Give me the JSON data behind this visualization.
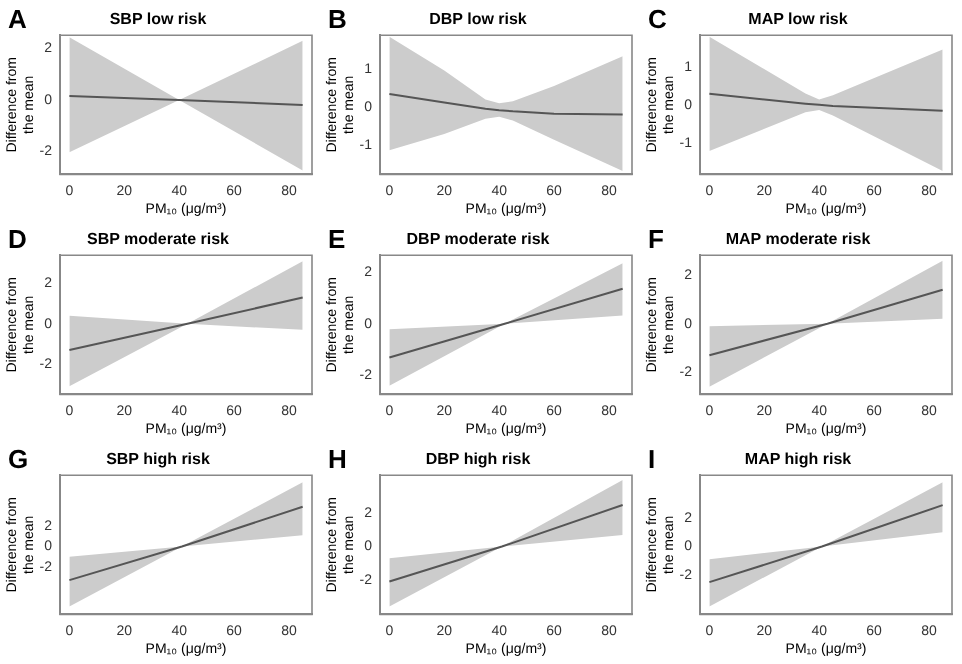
{
  "chart_data": [
    {
      "type": "line",
      "title": "SBP low risk",
      "xlabel": "PM₁₀ (μg/m³)",
      "ylabel": "Difference from the mean",
      "annotations": [
        "A"
      ],
      "marker": "none",
      "xlim": [
        -3.4,
        88.4
      ],
      "xticks": [
        0,
        20,
        40,
        60,
        80
      ],
      "ylim": [
        -2.9,
        2.52
      ],
      "yticks": [
        -2,
        0,
        2
      ],
      "series": [
        {
          "color": "#555555",
          "x": [
            0,
            40,
            85
          ],
          "values": [
            0.15,
            0,
            -0.2
          ],
          "lower": [
            -2.04,
            0,
            -2.75
          ],
          "upper": [
            2.44,
            0,
            2.3
          ]
        }
      ]
    },
    {
      "type": "line",
      "title": "DBP low risk",
      "xlabel": "PM₁₀ (μg/m³)",
      "ylabel": "Difference from the mean",
      "annotations": [
        "B"
      ],
      "marker": "none",
      "xlim": [
        -3.4,
        88.4
      ],
      "xticks": [
        0,
        20,
        40,
        60,
        80
      ],
      "ylim": [
        -1.75,
        1.87
      ],
      "yticks": [
        -1,
        0,
        1
      ],
      "series": [
        {
          "color": "#555555",
          "x": [
            0,
            20,
            35,
            40,
            45,
            60,
            85
          ],
          "values": [
            0.34,
            0.12,
            -0.04,
            -0.08,
            -0.11,
            -0.17,
            -0.19
          ],
          "lower": [
            -1.12,
            -0.7,
            -0.3,
            -0.25,
            -0.35,
            -0.85,
            -1.66
          ],
          "upper": [
            1.83,
            0.95,
            0.2,
            0.1,
            0.15,
            0.55,
            1.32
          ]
        }
      ]
    },
    {
      "type": "line",
      "title": "MAP low risk",
      "xlabel": "PM₁₀ (μg/m³)",
      "ylabel": "Difference from the mean",
      "annotations": [
        "C"
      ],
      "marker": "none",
      "xlim": [
        -3.4,
        88.4
      ],
      "xticks": [
        0,
        20,
        40,
        60,
        80
      ],
      "ylim": [
        -1.84,
        1.84
      ],
      "yticks": [
        -1,
        0,
        1
      ],
      "series": [
        {
          "color": "#555555",
          "x": [
            0,
            35,
            40,
            45,
            85
          ],
          "values": [
            0.29,
            0.03,
            0,
            -0.03,
            -0.16
          ],
          "lower": [
            -1.22,
            -0.2,
            -0.14,
            -0.28,
            -1.75
          ],
          "upper": [
            1.8,
            0.3,
            0.14,
            0.25,
            1.46
          ]
        }
      ]
    },
    {
      "type": "line",
      "title": "SBP moderate risk",
      "xlabel": "PM₁₀ (μg/m³)",
      "ylabel": "Difference from the mean",
      "annotations": [
        "D"
      ],
      "marker": "none",
      "xlim": [
        -3.4,
        88.4
      ],
      "xticks": [
        0,
        20,
        40,
        60,
        80
      ],
      "ylim": [
        -3.5,
        3.4
      ],
      "yticks": [
        -2,
        0,
        2
      ],
      "series": [
        {
          "color": "#555555",
          "x": [
            0,
            43,
            85
          ],
          "values": [
            -1.3,
            0,
            1.3
          ],
          "lower": [
            -3.1,
            0,
            -0.3
          ],
          "upper": [
            0.4,
            0,
            3.1
          ]
        }
      ]
    },
    {
      "type": "line",
      "title": "DBP moderate risk",
      "xlabel": "PM₁₀ (μg/m³)",
      "ylabel": "Difference from the mean",
      "annotations": [
        "E"
      ],
      "marker": "none",
      "xlim": [
        -3.4,
        88.4
      ],
      "xticks": [
        0,
        20,
        40,
        60,
        80
      ],
      "ylim": [
        -2.76,
        2.68
      ],
      "yticks": [
        -2,
        0,
        2
      ],
      "series": [
        {
          "color": "#555555",
          "x": [
            0,
            42,
            85
          ],
          "values": [
            -1.32,
            0,
            1.37
          ],
          "lower": [
            -2.42,
            0,
            0.32
          ],
          "upper": [
            -0.21,
            0,
            2.37
          ]
        }
      ]
    },
    {
      "type": "line",
      "title": "MAP moderate risk",
      "xlabel": "PM₁₀ (μg/m³)",
      "ylabel": "Difference from the mean",
      "annotations": [
        "F"
      ],
      "marker": "none",
      "xlim": [
        -3.4,
        88.4
      ],
      "xticks": [
        0,
        20,
        40,
        60,
        80
      ],
      "ylim": [
        -2.92,
        2.83
      ],
      "yticks": [
        -2,
        0,
        2
      ],
      "series": [
        {
          "color": "#555555",
          "x": [
            0,
            43,
            85
          ],
          "values": [
            -1.3,
            0,
            1.4
          ],
          "lower": [
            -2.6,
            0,
            0.2
          ],
          "upper": [
            -0.1,
            0,
            2.6
          ]
        }
      ]
    },
    {
      "type": "line",
      "title": "SBP high risk",
      "xlabel": "PM₁₀ (μg/m³)",
      "ylabel": "Difference from the mean",
      "annotations": [
        "G"
      ],
      "marker": "none",
      "xlim": [
        -3.4,
        88.4
      ],
      "xticks": [
        0,
        20,
        40,
        60,
        80
      ],
      "ylim": [
        -6.67,
        7
      ],
      "yticks": [
        -2,
        0,
        2
      ],
      "series": [
        {
          "color": "#555555",
          "x": [
            0,
            41,
            85
          ],
          "values": [
            -3.3,
            0,
            3.9
          ],
          "lower": [
            -5.9,
            0,
            1.1
          ],
          "upper": [
            -1,
            0,
            6.3
          ]
        }
      ]
    },
    {
      "type": "line",
      "title": "DBP high risk",
      "xlabel": "PM₁₀ (μg/m³)",
      "ylabel": "Difference from the mean",
      "annotations": [
        "H"
      ],
      "marker": "none",
      "xlim": [
        -3.4,
        88.4
      ],
      "xticks": [
        0,
        20,
        40,
        60,
        80
      ],
      "ylim": [
        -4.08,
        4.29
      ],
      "yticks": [
        -2,
        0,
        2
      ],
      "series": [
        {
          "color": "#555555",
          "x": [
            0,
            41,
            85
          ],
          "values": [
            -2.1,
            0,
            2.5
          ],
          "lower": [
            -3.6,
            0,
            0.7
          ],
          "upper": [
            -0.7,
            0,
            4
          ]
        }
      ]
    },
    {
      "type": "line",
      "title": "MAP high risk",
      "xlabel": "PM₁₀ (μg/m³)",
      "ylabel": "Difference from the mean",
      "annotations": [
        "I"
      ],
      "marker": "none",
      "xlim": [
        -3.4,
        88.4
      ],
      "xticks": [
        0,
        20,
        40,
        60,
        80
      ],
      "ylim": [
        -4.76,
        5
      ],
      "yticks": [
        -2,
        0,
        2
      ],
      "series": [
        {
          "color": "#555555",
          "x": [
            0,
            41,
            85
          ],
          "values": [
            -2.5,
            0,
            2.9
          ],
          "lower": [
            -4.2,
            0,
            1
          ],
          "upper": [
            -0.9,
            0,
            4.5
          ]
        }
      ]
    }
  ]
}
